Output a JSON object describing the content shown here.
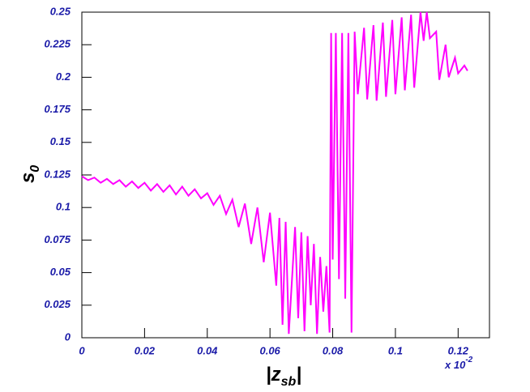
{
  "chart_data": {
    "type": "line",
    "y_label": "s",
    "y_label_sub": "0",
    "x_label_left": "|z",
    "x_label_sub": "sb",
    "x_label_right": "|",
    "x_multiplier": "x 10",
    "x_multiplier_exp": "-2",
    "xlim": [
      0,
      0.13
    ],
    "ylim": [
      0,
      0.25
    ],
    "xticks": [
      0,
      0.02,
      0.04,
      0.06,
      0.08,
      0.1,
      0.12
    ],
    "yticks": [
      0,
      0.025,
      0.05,
      0.075,
      0.1,
      0.125,
      0.15,
      0.175,
      0.2,
      0.225,
      0.25
    ],
    "series": [
      {
        "color": "#ff00ff",
        "x": [
          0,
          0.002,
          0.004,
          0.006,
          0.008,
          0.01,
          0.012,
          0.014,
          0.016,
          0.018,
          0.02,
          0.022,
          0.024,
          0.026,
          0.028,
          0.03,
          0.032,
          0.034,
          0.036,
          0.038,
          0.04,
          0.042,
          0.044,
          0.046,
          0.048,
          0.05,
          0.052,
          0.054,
          0.056,
          0.058,
          0.06,
          0.062,
          0.063,
          0.064,
          0.065,
          0.066,
          0.068,
          0.069,
          0.07,
          0.071,
          0.072,
          0.073,
          0.074,
          0.075,
          0.076,
          0.077,
          0.078,
          0.079,
          0.0795,
          0.08,
          0.081,
          0.082,
          0.083,
          0.084,
          0.085,
          0.086,
          0.087,
          0.088,
          0.09,
          0.091,
          0.093,
          0.094,
          0.096,
          0.097,
          0.099,
          0.1,
          0.102,
          0.103,
          0.105,
          0.106,
          0.108,
          0.109,
          0.11,
          0.111,
          0.113,
          0.114,
          0.116,
          0.117,
          0.119,
          0.12,
          0.122,
          0.123
        ],
        "values": [
          0.124,
          0.121,
          0.123,
          0.119,
          0.122,
          0.118,
          0.121,
          0.116,
          0.12,
          0.115,
          0.119,
          0.113,
          0.118,
          0.112,
          0.117,
          0.11,
          0.116,
          0.109,
          0.114,
          0.107,
          0.111,
          0.102,
          0.109,
          0.095,
          0.106,
          0.085,
          0.103,
          0.072,
          0.1,
          0.058,
          0.096,
          0.04,
          0.092,
          0.01,
          0.089,
          0.003,
          0.085,
          0.015,
          0.081,
          0.005,
          0.078,
          0.025,
          0.072,
          0.003,
          0.062,
          0.02,
          0.055,
          0.004,
          0.234,
          0.06,
          0.234,
          0.045,
          0.234,
          0.03,
          0.234,
          0.004,
          0.235,
          0.187,
          0.238,
          0.183,
          0.24,
          0.182,
          0.242,
          0.185,
          0.244,
          0.187,
          0.246,
          0.19,
          0.248,
          0.192,
          0.25,
          0.228,
          0.25,
          0.23,
          0.235,
          0.198,
          0.225,
          0.2,
          0.215,
          0.203,
          0.209,
          0.205
        ]
      }
    ]
  }
}
